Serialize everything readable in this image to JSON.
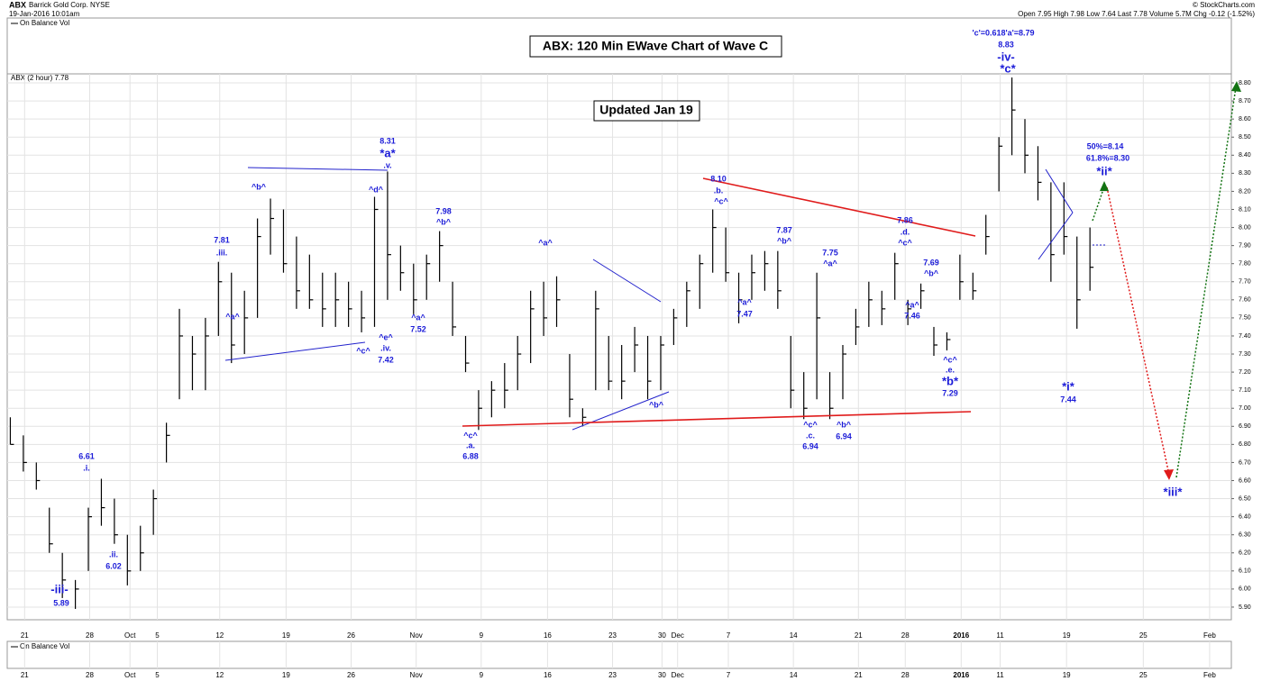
{
  "header": {
    "ticker": "ABX",
    "name": "Barrick Gold Corp.  NYSE",
    "date": "19-Jan-2016 10:01am",
    "source": "© StockCharts.com",
    "quote": "Open 7.95  High 7.98  Low 7.64  Last 7.78  Volume 5.7M  Chg -0.12 (-1.52%)",
    "indicator": "On Balance Vol",
    "lower_indicator": "On Balance Vol"
  },
  "chart_data": {
    "type": "ohlc",
    "title": "ABX: 120 Min EWave Chart of Wave C",
    "subtitle": "Updated Jan 19",
    "series_label": "ABX (2 hour) 7.78",
    "color": "#000000",
    "grid": true,
    "x": [
      0,
      1,
      2,
      3,
      4,
      5,
      6,
      7,
      8,
      9,
      10,
      11,
      12,
      13,
      14,
      15,
      16,
      17,
      18,
      19,
      20,
      21,
      22,
      23,
      24,
      25,
      26,
      27,
      28,
      29,
      30,
      31,
      32,
      33,
      34,
      35,
      36,
      37,
      38,
      39,
      40,
      41,
      42,
      43,
      44,
      45,
      46,
      47,
      48,
      49,
      50,
      51,
      52,
      53,
      54,
      55,
      56,
      57,
      58,
      59,
      60,
      61,
      62,
      63,
      64,
      65,
      66,
      67,
      68,
      69,
      70,
      71,
      72,
      73,
      74,
      75,
      76,
      77,
      78,
      79,
      80,
      81,
      82,
      83
    ],
    "high": [
      6.95,
      6.85,
      6.7,
      6.45,
      6.2,
      6.05,
      6.45,
      6.61,
      6.5,
      6.3,
      6.35,
      6.55,
      6.92,
      7.55,
      7.4,
      7.5,
      7.81,
      7.75,
      7.65,
      8.05,
      8.16,
      8.1,
      7.95,
      7.85,
      7.75,
      7.75,
      7.7,
      7.65,
      8.17,
      8.31,
      7.9,
      7.8,
      7.85,
      7.98,
      7.7,
      7.4,
      7.1,
      7.15,
      7.25,
      7.4,
      7.65,
      7.7,
      7.73,
      7.3,
      7.0,
      7.65,
      7.4,
      7.35,
      7.45,
      7.4,
      7.4,
      7.55,
      7.7,
      7.85,
      8.1,
      8.0,
      7.75,
      7.85,
      7.87,
      7.87,
      7.4,
      7.2,
      7.75,
      7.2,
      7.35,
      7.55,
      7.7,
      7.65,
      7.86,
      7.6,
      7.69,
      7.45,
      7.42,
      7.85,
      7.75,
      8.07,
      8.5,
      8.83,
      8.6,
      8.45,
      8.25,
      8.25,
      7.95,
      8.0
    ],
    "low": [
      6.8,
      6.65,
      6.55,
      6.2,
      5.95,
      5.89,
      6.1,
      6.35,
      6.25,
      6.02,
      6.1,
      6.3,
      6.7,
      7.05,
      7.1,
      7.1,
      7.4,
      7.25,
      7.3,
      7.5,
      7.85,
      7.75,
      7.55,
      7.55,
      7.45,
      7.45,
      7.45,
      7.42,
      7.45,
      7.6,
      7.65,
      7.52,
      7.6,
      7.7,
      7.4,
      7.2,
      6.88,
      6.95,
      7.0,
      7.1,
      7.25,
      7.4,
      7.45,
      6.95,
      6.9,
      7.1,
      7.1,
      7.05,
      7.2,
      7.05,
      7.1,
      7.35,
      7.45,
      7.55,
      7.75,
      7.7,
      7.47,
      7.6,
      7.65,
      7.55,
      7.0,
      6.94,
      7.05,
      6.94,
      7.05,
      7.35,
      7.45,
      7.46,
      7.6,
      7.46,
      7.55,
      7.29,
      7.32,
      7.6,
      7.6,
      7.85,
      8.2,
      8.4,
      8.3,
      8.15,
      7.7,
      7.85,
      7.44,
      7.65
    ],
    "close": [
      6.8,
      6.7,
      6.6,
      6.25,
      6.05,
      6.0,
      6.4,
      6.45,
      6.3,
      6.1,
      6.2,
      6.5,
      6.85,
      7.4,
      7.3,
      7.4,
      7.7,
      7.35,
      7.5,
      7.95,
      8.05,
      7.8,
      7.65,
      7.6,
      7.55,
      7.6,
      7.55,
      7.5,
      8.1,
      7.85,
      7.75,
      7.6,
      7.8,
      7.9,
      7.45,
      7.25,
      7.0,
      7.1,
      7.1,
      7.3,
      7.55,
      7.5,
      7.6,
      7.05,
      6.95,
      7.55,
      7.15,
      7.15,
      7.35,
      7.15,
      7.35,
      7.5,
      7.65,
      7.8,
      8.0,
      7.75,
      7.6,
      7.75,
      7.8,
      7.65,
      7.1,
      7.0,
      7.5,
      7.0,
      7.3,
      7.45,
      7.6,
      7.55,
      7.8,
      7.55,
      7.65,
      7.35,
      7.38,
      7.7,
      7.65,
      7.95,
      8.45,
      8.65,
      8.4,
      8.25,
      7.85,
      7.95,
      7.6,
      7.78
    ],
    "xlim": [
      -0.1,
      93.8
    ],
    "xticks": [
      {
        "value": 1.1,
        "label": "21"
      },
      {
        "value": 6.1,
        "label": "28"
      },
      {
        "value": 9.2,
        "label": "Oct"
      },
      {
        "value": 11.3,
        "label": "5"
      },
      {
        "value": 16.1,
        "label": "12"
      },
      {
        "value": 21.2,
        "label": "19"
      },
      {
        "value": 26.2,
        "label": "26"
      },
      {
        "value": 31.2,
        "label": "Nov"
      },
      {
        "value": 36.2,
        "label": "9"
      },
      {
        "value": 41.3,
        "label": "16"
      },
      {
        "value": 46.3,
        "label": "23"
      },
      {
        "value": 50.1,
        "label": "30"
      },
      {
        "value": 51.3,
        "label": "Dec"
      },
      {
        "value": 55.2,
        "label": "7"
      },
      {
        "value": 60.2,
        "label": "14"
      },
      {
        "value": 65.2,
        "label": "21"
      },
      {
        "value": 68.8,
        "label": "28"
      },
      {
        "value": 73.1,
        "label": "2016"
      },
      {
        "value": 76.1,
        "label": "11"
      },
      {
        "value": 81.2,
        "label": "19"
      },
      {
        "value": 87.1,
        "label": "25"
      },
      {
        "value": 92.2,
        "label": "Feb"
      }
    ],
    "ylim": [
      5.83,
      8.85
    ],
    "yticks": [
      {
        "value": 5.9,
        "label": "5.90"
      },
      {
        "value": 6.0,
        "label": "6.00"
      },
      {
        "value": 6.1,
        "label": "6.10"
      },
      {
        "value": 6.2,
        "label": "6.20"
      },
      {
        "value": 6.3,
        "label": "6.30"
      },
      {
        "value": 6.4,
        "label": "6.40"
      },
      {
        "value": 6.5,
        "label": "6.50"
      },
      {
        "value": 6.6,
        "label": "6.60"
      },
      {
        "value": 6.7,
        "label": "6.70"
      },
      {
        "value": 6.8,
        "label": "6.80"
      },
      {
        "value": 6.9,
        "label": "6.90"
      },
      {
        "value": 7.0,
        "label": "7.00"
      },
      {
        "value": 7.1,
        "label": "7.10"
      },
      {
        "value": 7.2,
        "label": "7.20"
      },
      {
        "value": 7.3,
        "label": "7.30"
      },
      {
        "value": 7.4,
        "label": "7.40"
      },
      {
        "value": 7.5,
        "label": "7.50"
      },
      {
        "value": 7.6,
        "label": "7.60"
      },
      {
        "value": 7.7,
        "label": "7.70"
      },
      {
        "value": 7.8,
        "label": "7.80"
      },
      {
        "value": 7.9,
        "label": "7.90"
      },
      {
        "value": 8.0,
        "label": "8.00"
      },
      {
        "value": 8.1,
        "label": "8.10"
      },
      {
        "value": 8.2,
        "label": "8.20"
      },
      {
        "value": 8.3,
        "label": "8.30"
      },
      {
        "value": 8.4,
        "label": "8.40"
      },
      {
        "value": 8.5,
        "label": "8.50"
      },
      {
        "value": 8.6,
        "label": "8.60"
      },
      {
        "value": 8.7,
        "label": "8.70"
      },
      {
        "value": 8.8,
        "label": "8.80"
      }
    ],
    "annotations": [
      "'c'=0.618'a'=8.79",
      "8.83",
      "-iv-",
      "*c*",
      "8.31",
      "*a*",
      ".v.",
      "7.98",
      "^b^",
      "8.10",
      ".b.",
      "^c^",
      "7.81",
      ".iii.",
      "^b^",
      "^d^",
      "^a^",
      "7.87",
      "^b^",
      "7.75",
      "^a^",
      "7.86",
      ".d.",
      "^c^",
      "7.69",
      "^b^",
      "^a^",
      "^c^",
      "^e^",
      ".iv.",
      "7.42",
      "^a^",
      "7.52",
      "^a^",
      "7.47",
      "^a^",
      "7.46",
      "^b^",
      "^c^",
      ".a.",
      "6.88",
      "^c^",
      ".c.",
      "6.94",
      "^b^",
      "6.94",
      "^c^",
      ".e.",
      "*b*",
      "7.29",
      "6.61",
      ".i.",
      ".ii.",
      "6.02",
      "-iii-",
      "5.89",
      "50%=8.14",
      "61.8%=8.30",
      "*ii*",
      "*i*",
      "7.44",
      "*iii*"
    ]
  }
}
